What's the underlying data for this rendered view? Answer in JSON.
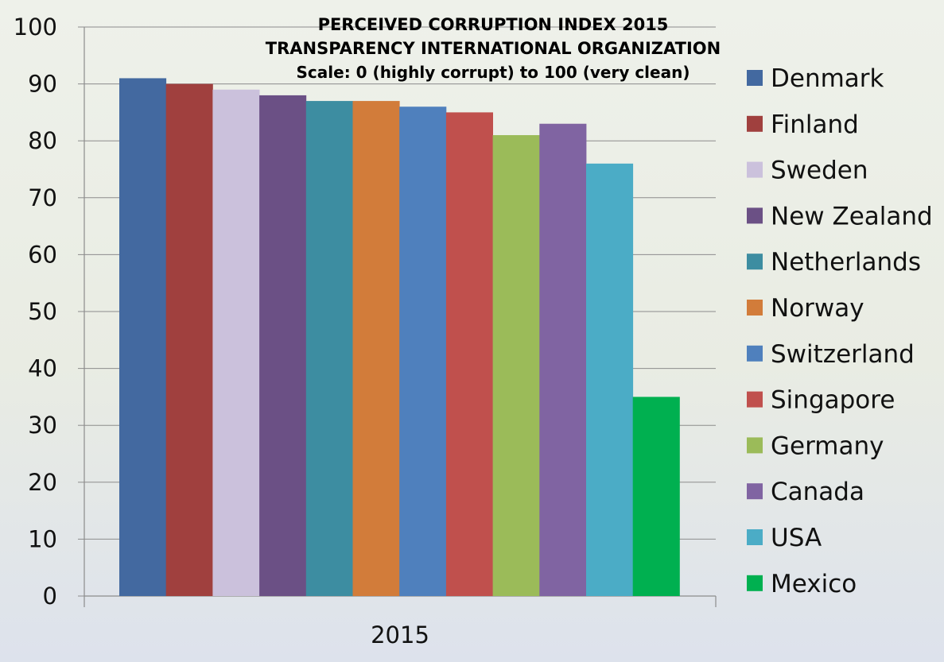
{
  "chart_data": {
    "type": "bar",
    "title": "PERCEIVED CORRUPTION INDEX 2015",
    "subtitle": "TRANSPARENCY INTERNATIONAL ORGANIZATION",
    "scale_note": "Scale: 0 (highly corrupt) to 100 (very clean)",
    "categories": [
      "2015"
    ],
    "xlabel": "",
    "ylabel": "",
    "ylim": [
      0,
      100
    ],
    "yticks": [
      0,
      10,
      20,
      30,
      40,
      50,
      60,
      70,
      80,
      90,
      100
    ],
    "grid": true,
    "legend_position": "right",
    "series": [
      {
        "name": "Denmark",
        "values": [
          91
        ],
        "color": "#4369a0"
      },
      {
        "name": "Finland",
        "values": [
          90
        ],
        "color": "#a0403e"
      },
      {
        "name": "Sweden",
        "values": [
          89
        ],
        "color": "#cbc1dc"
      },
      {
        "name": "New Zealand",
        "values": [
          88
        ],
        "color": "#6b5085"
      },
      {
        "name": "Netherlands",
        "values": [
          87
        ],
        "color": "#3d8da1"
      },
      {
        "name": "Norway",
        "values": [
          87
        ],
        "color": "#d27c3a"
      },
      {
        "name": "Switzerland",
        "values": [
          86
        ],
        "color": "#4f80bd"
      },
      {
        "name": "Singapore",
        "values": [
          85
        ],
        "color": "#c0504d"
      },
      {
        "name": "Germany",
        "values": [
          81
        ],
        "color": "#9bbb59"
      },
      {
        "name": "Canada",
        "values": [
          83
        ],
        "color": "#8064a2"
      },
      {
        "name": "USA",
        "values": [
          76
        ],
        "color": "#4bacc6"
      },
      {
        "name": "Mexico",
        "values": [
          35
        ],
        "color": "#00b050"
      }
    ]
  }
}
